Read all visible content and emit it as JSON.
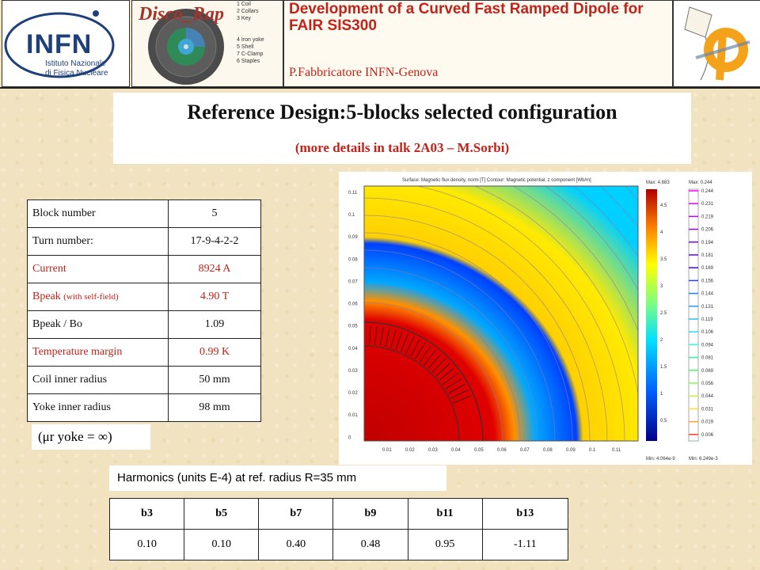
{
  "header": {
    "title": "Development of a Curved Fast Ramped Dipole for FAIR SIS300",
    "author": "P.Fabbricatore INFN-Genova",
    "infn_logo": "INFN",
    "infn_sub_1": "Istituto Nazionale",
    "infn_sub_2": "di Fisica Nucleare",
    "disco_logo": "Disco_Rap",
    "disco_legend": [
      "1 Coil",
      "2 Collars",
      "3 Key",
      "4 Iron yoke",
      "5 Shell",
      "7 C-Clamp",
      "6 Staples"
    ]
  },
  "reference": {
    "title": "Reference Design:5-blocks selected configuration",
    "subtitle": "(more details in talk 2A03 – M.Sorbi)"
  },
  "params": {
    "rows": [
      {
        "label": "Block number",
        "value": "5",
        "color": "#111111"
      },
      {
        "label": "Turn number:",
        "value": "17-9-4-2-2",
        "color": "#111111"
      },
      {
        "label": "Current",
        "value": "8924 A",
        "color": "#c0231a"
      },
      {
        "label": "Bpeak",
        "label_note": "(with self-field)",
        "value": "4.90 T",
        "color": "#c0231a"
      },
      {
        "label": "Bpeak / Bo",
        "value": "1.09",
        "color": "#111111"
      },
      {
        "label": "Temperature margin",
        "value": "0.99 K",
        "color": "#c0231a"
      },
      {
        "label": "Coil inner radius",
        "value": "50 mm",
        "color": "#111111"
      },
      {
        "label": "Yoke inner radius",
        "value": "98 mm",
        "color": "#111111"
      }
    ],
    "mu_note": "(μr yoke = ∞)"
  },
  "plot": {
    "surface_label": "Surface: Magnetic flux density, norm [T]   Contour: Magnetic potential, z component [Wb/m]",
    "max_left": "Max: 4.883",
    "min_left": "Min: 4.064e-9",
    "max_right": "Max: 0.244",
    "min_right": "Min: 6.249e-3",
    "y_ticks": [
      "0.11",
      "0.1",
      "0.09",
      "0.08",
      "0.07",
      "0.06",
      "0.05",
      "0.04",
      "0.03",
      "0.02",
      "0.01",
      "0"
    ],
    "x_ticks": [
      "0.01",
      "0.02",
      "0.03",
      "0.04",
      "0.05",
      "0.06",
      "0.07",
      "0.08",
      "0.09",
      "0.1",
      "0.11"
    ],
    "colorbar_left": [
      "4.5",
      "4",
      "3.5",
      "3",
      "2.5",
      "2",
      "1.5",
      "1",
      "0.5"
    ],
    "colorbar_right": [
      "0.244",
      "0.231",
      "0.219",
      "0.206",
      "0.194",
      "0.181",
      "0.169",
      "0.156",
      "0.144",
      "0.131",
      "0.119",
      "0.106",
      "0.094",
      "0.081",
      "0.069",
      "0.056",
      "0.044",
      "0.031",
      "0.019",
      "0.006"
    ]
  },
  "harmonics": {
    "label": "Harmonics (units E-4) at ref. radius R=35 mm",
    "headers": [
      "b3",
      "b5",
      "b7",
      "b9",
      "b11",
      "b13"
    ],
    "values": [
      "0.10",
      "0.10",
      "0.40",
      "0.48",
      "0.95",
      "-1.11"
    ]
  }
}
